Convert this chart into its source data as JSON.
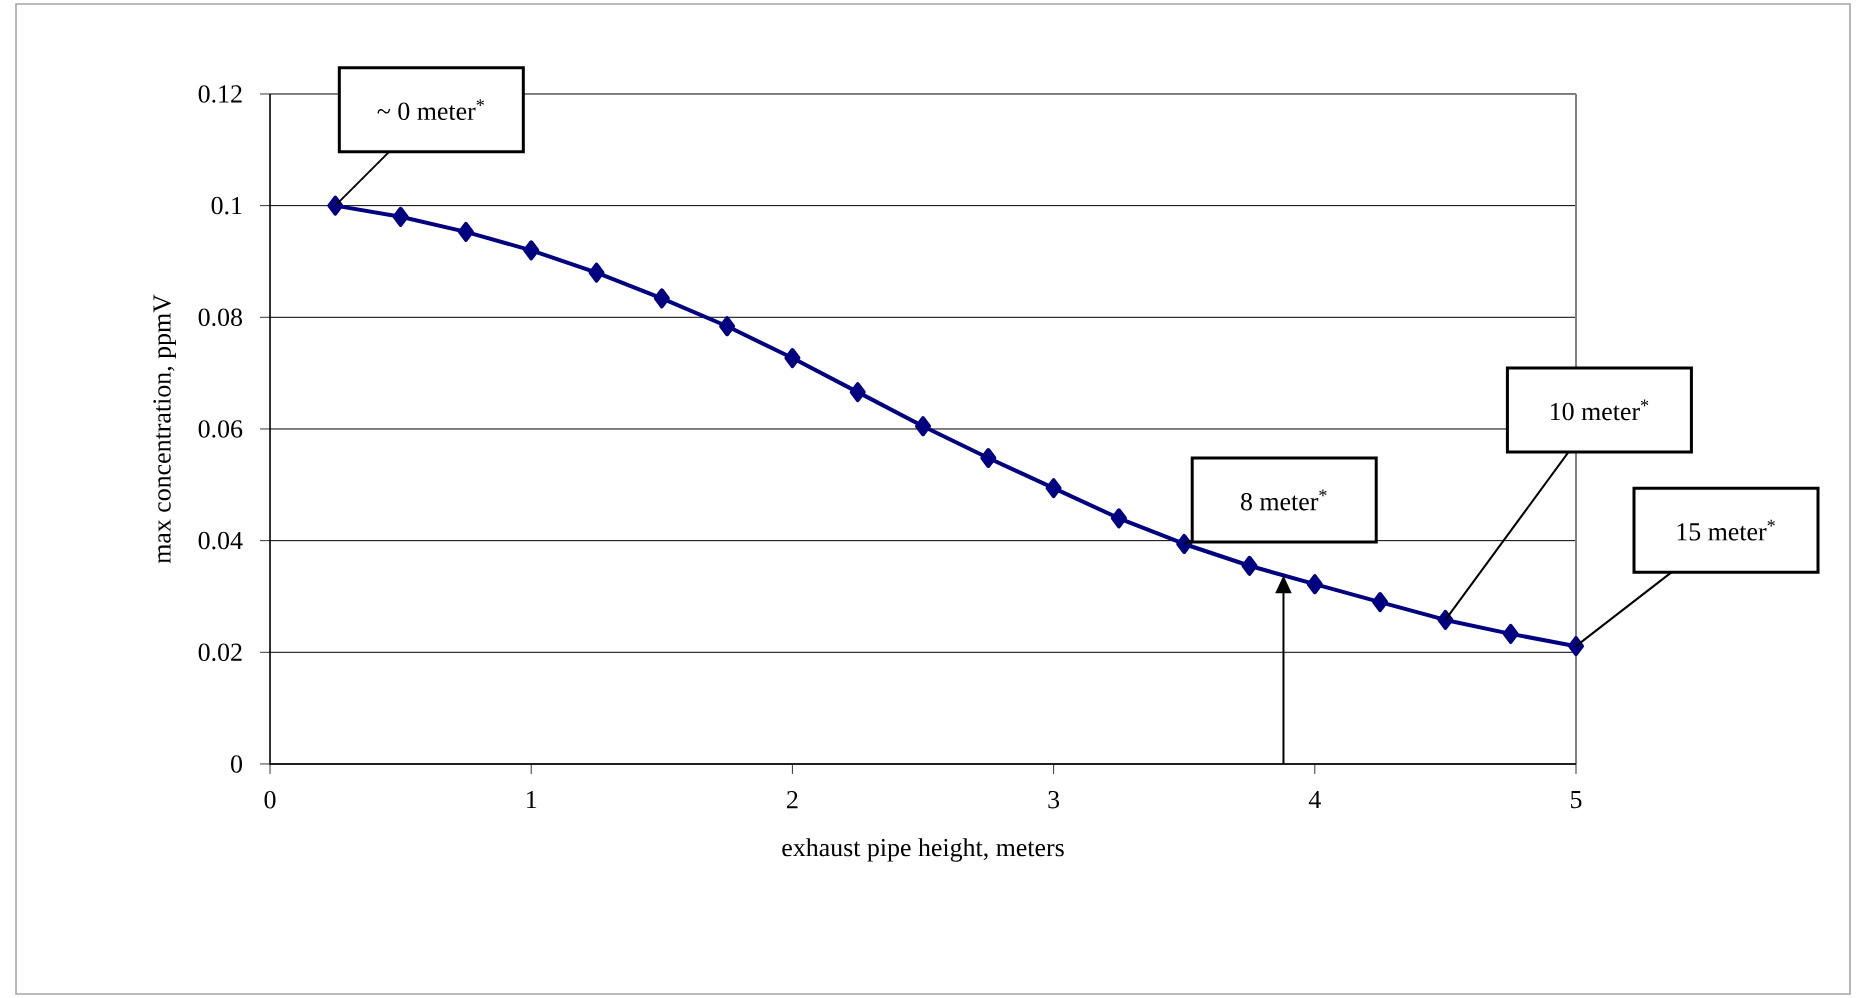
{
  "chart_data": {
    "type": "line",
    "xlabel": "exhaust pipe height, meters",
    "ylabel": "max concentration, ppmV",
    "x": [
      0.25,
      0.5,
      0.75,
      1.0,
      1.25,
      1.5,
      1.75,
      2.0,
      2.25,
      2.5,
      2.75,
      3.0,
      3.25,
      3.5,
      3.75,
      4.0,
      4.25,
      4.5,
      4.75,
      5.0
    ],
    "series": [
      {
        "color": "#000080",
        "values": [
          0.1,
          0.098,
          0.0953,
          0.092,
          0.088,
          0.0834,
          0.0784,
          0.0727,
          0.0666,
          0.0605,
          0.0548,
          0.0494,
          0.044,
          0.0394,
          0.0355,
          0.0322,
          0.029,
          0.0258,
          0.0233,
          0.0211
        ]
      }
    ],
    "xlim": [
      0,
      5
    ],
    "xticks": [
      0,
      1,
      2,
      3,
      4,
      5
    ],
    "ylim": [
      0,
      0.12
    ],
    "yticks": [
      0,
      0.02,
      0.04,
      0.06,
      0.08,
      0.1,
      0.12
    ],
    "grid": "y",
    "marker": "diamond",
    "line_style": "solid",
    "ref_lines": [
      {
        "axis": "x",
        "value": 3.88
      }
    ],
    "annotations": [
      {
        "text": "~ 0 meter$^{*}$",
        "x": 0.25,
        "y": 0.1
      },
      {
        "text": "8 meter$^{*}$",
        "x": 3.5,
        "y": 0.0394
      },
      {
        "text": "10 meter$^{*}$",
        "x": 4.5,
        "y": 0.0258
      },
      {
        "text": "15 meter$^{*}$",
        "x": 5.0,
        "y": 0.0211
      }
    ]
  }
}
